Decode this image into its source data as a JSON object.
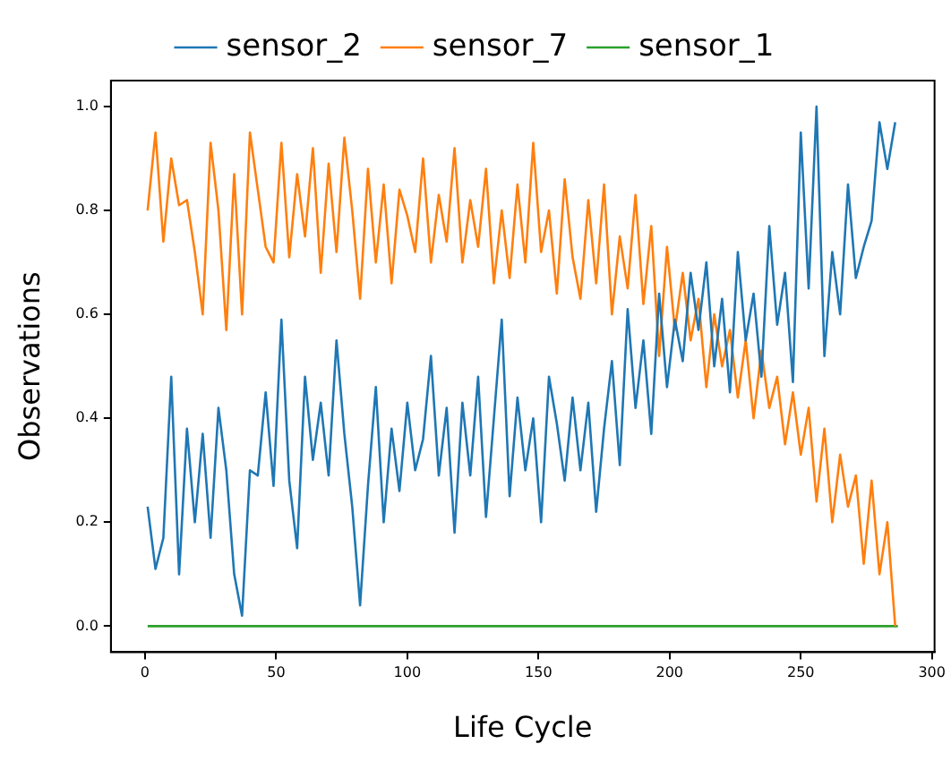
{
  "chart_data": {
    "type": "line",
    "xlabel": "Life Cycle",
    "ylabel": "Observations",
    "legend": "top",
    "grid": false,
    "marker": "none",
    "line_style": "solid",
    "xlim": [
      -13,
      301
    ],
    "xticks": [
      0,
      50,
      100,
      150,
      200,
      250,
      300
    ],
    "ylim": [
      -0.05,
      1.05
    ],
    "yticks": [
      {
        "value": 0,
        "label": "0.0"
      },
      {
        "value": 0.2,
        "label": "0.2"
      },
      {
        "value": 0.4,
        "label": "0.4"
      },
      {
        "value": 0.6,
        "label": "0.6"
      },
      {
        "value": 0.8,
        "label": "0.8"
      },
      {
        "value": 1,
        "label": "1.0"
      }
    ],
    "x": [
      1,
      4,
      7,
      10,
      13,
      16,
      19,
      22,
      25,
      28,
      31,
      34,
      37,
      40,
      43,
      46,
      49,
      52,
      55,
      58,
      61,
      64,
      67,
      70,
      73,
      76,
      79,
      82,
      85,
      88,
      91,
      94,
      97,
      100,
      103,
      106,
      109,
      112,
      115,
      118,
      121,
      124,
      127,
      130,
      133,
      136,
      139,
      142,
      145,
      148,
      151,
      154,
      157,
      160,
      163,
      166,
      169,
      172,
      175,
      178,
      181,
      184,
      187,
      190,
      193,
      196,
      199,
      202,
      205,
      208,
      211,
      214,
      217,
      220,
      223,
      226,
      229,
      232,
      235,
      238,
      241,
      244,
      247,
      250,
      253,
      256,
      259,
      262,
      265,
      268,
      271,
      274,
      277,
      280,
      283,
      286
    ],
    "series": [
      {
        "name": "sensor_2",
        "color": "#1f77b4",
        "values": [
          0.23,
          0.11,
          0.17,
          0.48,
          0.1,
          0.38,
          0.2,
          0.37,
          0.17,
          0.42,
          0.3,
          0.1,
          0.02,
          0.3,
          0.29,
          0.45,
          0.27,
          0.59,
          0.28,
          0.15,
          0.48,
          0.32,
          0.43,
          0.29,
          0.55,
          0.37,
          0.23,
          0.04,
          0.27,
          0.46,
          0.2,
          0.38,
          0.26,
          0.43,
          0.3,
          0.36,
          0.52,
          0.29,
          0.42,
          0.18,
          0.43,
          0.29,
          0.48,
          0.21,
          0.4,
          0.59,
          0.25,
          0.44,
          0.3,
          0.4,
          0.2,
          0.48,
          0.39,
          0.28,
          0.44,
          0.3,
          0.43,
          0.22,
          0.38,
          0.51,
          0.31,
          0.61,
          0.42,
          0.55,
          0.37,
          0.64,
          0.46,
          0.59,
          0.51,
          0.68,
          0.57,
          0.7,
          0.5,
          0.63,
          0.45,
          0.72,
          0.55,
          0.64,
          0.48,
          0.77,
          0.58,
          0.68,
          0.47,
          0.95,
          0.65,
          1.0,
          0.52,
          0.72,
          0.6,
          0.85,
          0.67,
          0.73,
          0.78,
          0.97,
          0.88,
          0.97
        ]
      },
      {
        "name": "sensor_7",
        "color": "#ff7f0e",
        "values": [
          0.8,
          0.95,
          0.74,
          0.9,
          0.81,
          0.82,
          0.72,
          0.6,
          0.93,
          0.8,
          0.57,
          0.87,
          0.6,
          0.95,
          0.84,
          0.73,
          0.7,
          0.93,
          0.71,
          0.87,
          0.75,
          0.92,
          0.68,
          0.89,
          0.72,
          0.94,
          0.8,
          0.63,
          0.88,
          0.7,
          0.85,
          0.66,
          0.84,
          0.79,
          0.72,
          0.9,
          0.7,
          0.83,
          0.74,
          0.92,
          0.7,
          0.82,
          0.73,
          0.88,
          0.66,
          0.8,
          0.67,
          0.85,
          0.7,
          0.93,
          0.72,
          0.8,
          0.64,
          0.86,
          0.71,
          0.63,
          0.82,
          0.66,
          0.85,
          0.6,
          0.75,
          0.65,
          0.83,
          0.62,
          0.77,
          0.52,
          0.73,
          0.57,
          0.68,
          0.55,
          0.63,
          0.46,
          0.6,
          0.5,
          0.57,
          0.44,
          0.55,
          0.4,
          0.53,
          0.42,
          0.48,
          0.35,
          0.45,
          0.33,
          0.42,
          0.24,
          0.38,
          0.2,
          0.33,
          0.23,
          0.29,
          0.12,
          0.28,
          0.1,
          0.2,
          0.0
        ]
      },
      {
        "name": "sensor_1",
        "color": "#2ca02c",
        "x": [
          1,
          287
        ],
        "values": [
          0,
          0
        ]
      }
    ]
  }
}
